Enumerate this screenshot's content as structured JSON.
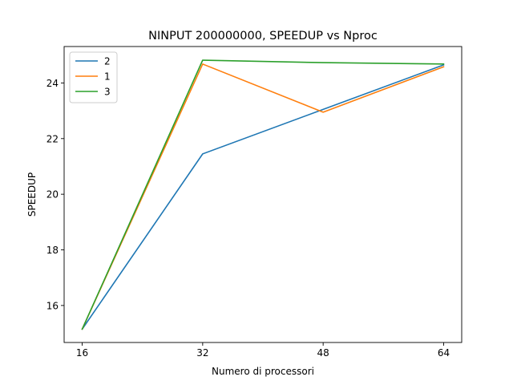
{
  "chart_data": {
    "type": "line",
    "title": "NINPUT 200000000, SPEEDUP vs Nproc",
    "xlabel": "Numero di processori",
    "ylabel": "SPEEDUP",
    "x": [
      16,
      32,
      48,
      64
    ],
    "x_ticks": [
      "16",
      "32",
      "48",
      "64"
    ],
    "y_ticks": [
      "16",
      "18",
      "20",
      "22",
      "24"
    ],
    "xlim": [
      13.6,
      66.4
    ],
    "ylim": [
      14.67,
      25.31
    ],
    "grid": false,
    "legend_position": "top-left",
    "series": [
      {
        "name": "2",
        "color": "#1f77b4",
        "values": [
          15.15,
          21.45,
          23.05,
          24.65
        ]
      },
      {
        "name": "1",
        "color": "#ff7f0e",
        "values": [
          15.15,
          24.68,
          22.95,
          24.58
        ]
      },
      {
        "name": "3",
        "color": "#2ca02c",
        "values": [
          15.15,
          24.82,
          24.73,
          24.68
        ]
      }
    ]
  }
}
